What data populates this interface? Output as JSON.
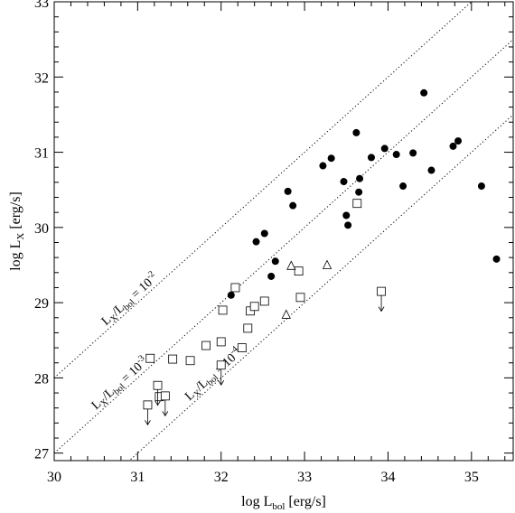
{
  "chart_data": {
    "type": "scatter",
    "xlabel_main": "log L",
    "xlabel_sub": "bol",
    "xlabel_unit": "[erg/s]",
    "ylabel_main": "log L",
    "ylabel_sub": "X",
    "ylabel_unit": "[erg/s]",
    "xlim": [
      30,
      35.5
    ],
    "ylim": [
      26.9,
      33
    ],
    "xticks": [
      30,
      31,
      32,
      33,
      34,
      35
    ],
    "yticks": [
      27,
      28,
      29,
      30,
      31,
      32,
      33
    ],
    "xtick_labels": [
      "30",
      "31",
      "32",
      "33",
      "34",
      "35"
    ],
    "ytick_labels": [
      "27",
      "28",
      "29",
      "30",
      "31",
      "32",
      "33"
    ],
    "grid": false,
    "reference_lines": [
      {
        "offset": -2,
        "label_lx": "L",
        "label_x": "X",
        "label_slash": "/L",
        "label_bol": "bol",
        "label_eq": " = 10",
        "label_exp": "-2"
      },
      {
        "offset": -3,
        "label_lx": "L",
        "label_x": "X",
        "label_slash": "/L",
        "label_bol": "bol",
        "label_eq": " = 10",
        "label_exp": "-3"
      },
      {
        "offset": -4,
        "label_lx": "L",
        "label_x": "X",
        "label_slash": "/L",
        "label_bol": "bol",
        "label_eq": " = 10",
        "label_exp": "-4"
      }
    ],
    "series": [
      {
        "marker": "filled-circle",
        "x": [
          32.12,
          32.42,
          32.52,
          32.6,
          32.65,
          32.8,
          32.86,
          33.22,
          33.32,
          33.47,
          33.5,
          33.52,
          33.62,
          33.65,
          33.66,
          33.8,
          33.96,
          34.1,
          34.18,
          34.3,
          34.43,
          34.52,
          34.78,
          34.84,
          35.12,
          35.3
        ],
        "y": [
          29.1,
          29.81,
          29.92,
          29.35,
          29.55,
          30.48,
          30.29,
          30.82,
          30.92,
          30.61,
          30.16,
          30.03,
          31.26,
          30.47,
          30.65,
          30.93,
          31.05,
          30.97,
          30.55,
          30.99,
          31.79,
          30.76,
          31.08,
          31.15,
          30.55,
          29.58
        ]
      },
      {
        "marker": "open-square",
        "x": [
          31.15,
          31.26,
          31.42,
          31.63,
          31.82,
          32.0,
          32.02,
          32.17,
          32.25,
          32.32,
          32.35,
          32.4,
          32.52,
          32.93,
          32.95,
          33.63
        ],
        "y": [
          28.26,
          27.75,
          28.25,
          28.23,
          28.43,
          28.48,
          28.9,
          29.2,
          28.4,
          28.66,
          28.89,
          28.95,
          29.02,
          29.42,
          29.07,
          30.32
        ]
      },
      {
        "marker": "open-triangle",
        "x": [
          32.78,
          32.84,
          33.27
        ],
        "y": [
          28.84,
          29.49,
          29.5
        ]
      },
      {
        "marker": "upper-limit-square",
        "x": [
          31.12,
          31.24,
          31.33,
          32.0,
          33.92
        ],
        "y": [
          27.64,
          27.9,
          27.76,
          28.17,
          29.15
        ]
      }
    ]
  }
}
